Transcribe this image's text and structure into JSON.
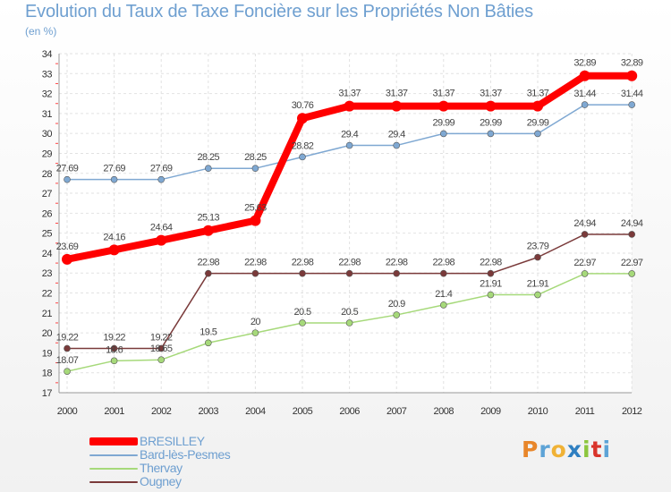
{
  "chart_data": {
    "type": "line",
    "title": "Evolution du Taux de Taxe Foncière sur les Propriétés Non Bâties",
    "subtitle": "(en %)",
    "xlabel": "",
    "ylabel": "",
    "categories": [
      "2000",
      "2001",
      "2002",
      "2003",
      "2004",
      "2005",
      "2006",
      "2007",
      "2008",
      "2009",
      "2010",
      "2011",
      "2012"
    ],
    "ylim": [
      17,
      34
    ],
    "yticks": [
      17,
      18,
      19,
      20,
      21,
      22,
      23,
      24,
      25,
      26,
      27,
      28,
      29,
      30,
      31,
      32,
      33,
      34
    ],
    "grid": true,
    "series": [
      {
        "name": "BRESILLEY",
        "color": "#ff0000",
        "values": [
          23.69,
          24.16,
          24.64,
          25.13,
          25.63,
          30.76,
          31.37,
          31.37,
          31.37,
          31.37,
          31.37,
          32.89,
          32.89
        ],
        "labels": [
          "23.69",
          "24.16",
          "24.64",
          "25.13",
          "25.63",
          "30.76",
          "31.37",
          "31.37",
          "31.37",
          "31.37",
          "31.37",
          "32.89",
          "32.89"
        ]
      },
      {
        "name": "Bard-lès-Pesmes",
        "color": "#7fa8d2",
        "values": [
          27.69,
          27.69,
          27.69,
          28.25,
          28.25,
          28.82,
          29.4,
          29.4,
          29.99,
          29.99,
          29.99,
          31.44,
          31.44
        ],
        "labels": [
          "27.69",
          "27.69",
          "27.69",
          "28.25",
          "28.25",
          "28.82",
          "29.4",
          "29.4",
          "29.99",
          "29.99",
          "29.99",
          "31.44",
          "31.44"
        ]
      },
      {
        "name": "Thervay",
        "color": "#a6d97a",
        "values": [
          18.07,
          18.6,
          18.65,
          19.5,
          20,
          20.5,
          20.5,
          20.9,
          21.4,
          21.91,
          21.91,
          22.97,
          22.97
        ],
        "labels": [
          "18.07",
          "18.6",
          "18.65",
          "19.5",
          "20",
          "20.5",
          "20.5",
          "20.9",
          "21.4",
          "21.91",
          "21.91",
          "22.97",
          "22.97"
        ]
      },
      {
        "name": "Ougney",
        "color": "#7a3a3a",
        "values": [
          19.22,
          19.22,
          19.22,
          22.98,
          22.98,
          22.98,
          22.98,
          22.98,
          22.98,
          22.98,
          23.79,
          24.94,
          24.94
        ],
        "labels": [
          "19.22",
          "19.22",
          "19.22",
          "22.98",
          "22.98",
          "22.98",
          "22.98",
          "22.98",
          "22.98",
          "22.98",
          "23.79",
          "24.94",
          "24.94"
        ]
      }
    ]
  },
  "legend": {
    "items": [
      {
        "label": "BRESILLEY",
        "color": "#ff0000"
      },
      {
        "label": "Bard-lès-Pesmes",
        "color": "#7fa8d2"
      },
      {
        "label": "Thervay",
        "color": "#a6d97a"
      },
      {
        "label": "Ougney",
        "color": "#7a3a3a"
      }
    ]
  },
  "logo": {
    "text": "Proxiti"
  }
}
